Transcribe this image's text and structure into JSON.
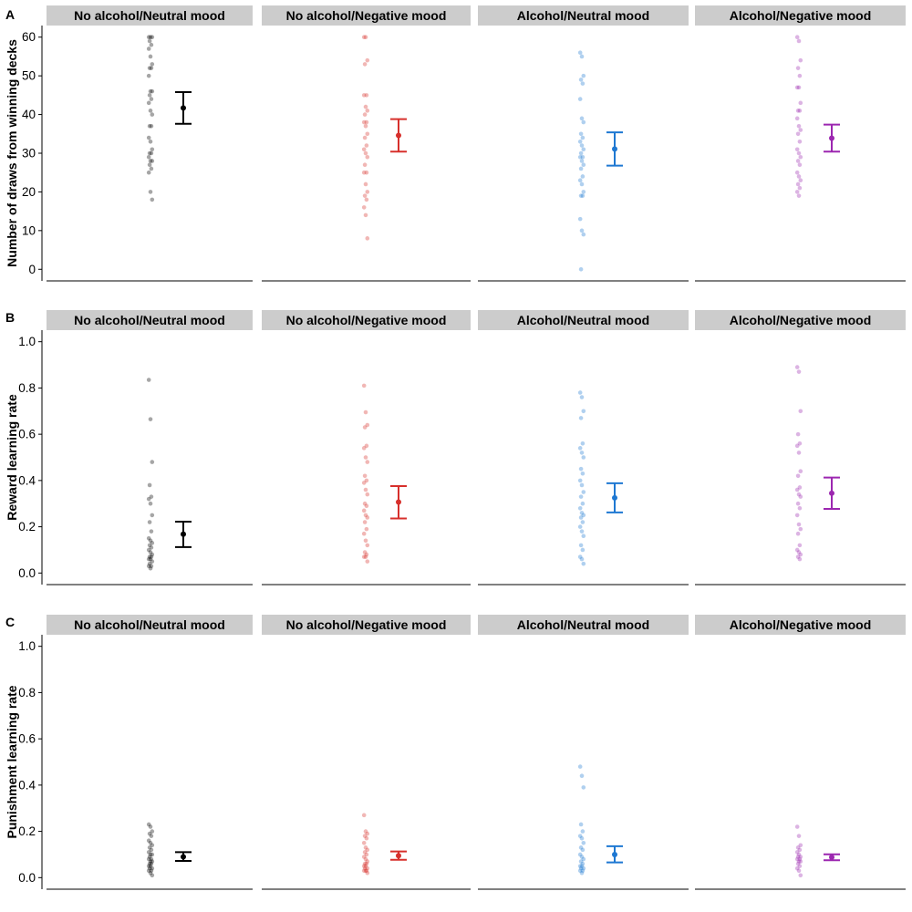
{
  "chart_data": [
    {
      "type": "scatter",
      "panel_label": "A",
      "ylabel": "Number of draws from winning decks",
      "ylim": [
        -3,
        63
      ],
      "yticks": [
        "0",
        "10",
        "20",
        "30",
        "40",
        "50",
        "60"
      ],
      "grid": false,
      "facets": [
        {
          "name": "No alcohol/Neutral mood",
          "color": "#000000",
          "points": [
            60,
            60,
            60,
            59,
            58,
            57,
            55,
            53,
            52,
            52,
            50,
            46,
            46,
            45,
            44,
            43,
            41,
            40,
            37,
            37,
            34,
            33,
            31,
            30,
            30,
            29,
            28,
            28,
            27,
            26,
            25,
            20,
            18
          ],
          "mean": 41.7,
          "ci_low": 37.6,
          "ci_high": 45.8
        },
        {
          "name": "No alcohol/Negative mood",
          "color": "#D7302C",
          "points": [
            60,
            60,
            54,
            53,
            45,
            45,
            42,
            41,
            40,
            38,
            38,
            37,
            35,
            34,
            32,
            31,
            30,
            29,
            27,
            25,
            25,
            22,
            20,
            19,
            18,
            16,
            14,
            8
          ],
          "mean": 34.6,
          "ci_low": 30.4,
          "ci_high": 38.8
        },
        {
          "name": "Alcohol/Neutral mood",
          "color": "#1E78D2",
          "points": [
            56,
            55,
            50,
            49,
            48,
            44,
            39,
            38,
            35,
            34,
            33,
            32,
            31,
            30,
            29,
            29,
            28,
            27,
            26,
            24,
            23,
            22,
            20,
            19,
            19,
            13,
            10,
            9,
            0
          ],
          "mean": 31.1,
          "ci_low": 26.8,
          "ci_high": 35.4
        },
        {
          "name": "Alcohol/Negative mood",
          "color": "#9C27B0",
          "points": [
            60,
            59,
            54,
            52,
            50,
            47,
            47,
            43,
            41,
            41,
            39,
            37,
            36,
            35,
            33,
            31,
            30,
            29,
            28,
            27,
            25,
            24,
            23,
            22,
            21,
            20,
            19
          ],
          "mean": 33.9,
          "ci_low": 30.4,
          "ci_high": 37.4
        }
      ]
    },
    {
      "type": "scatter",
      "panel_label": "B",
      "ylabel": "Reward learning rate",
      "ylim": [
        -0.05,
        1.05
      ],
      "yticks": [
        "0.0",
        "0.2",
        "0.4",
        "0.6",
        "0.8",
        "1.0"
      ],
      "grid": false,
      "facets": [
        {
          "name": "No alcohol/Neutral mood",
          "color": "#000000",
          "points": [
            0.835,
            0.665,
            0.48,
            0.38,
            0.33,
            0.32,
            0.3,
            0.25,
            0.22,
            0.18,
            0.15,
            0.14,
            0.13,
            0.12,
            0.11,
            0.1,
            0.09,
            0.08,
            0.07,
            0.07,
            0.06,
            0.06,
            0.05,
            0.04,
            0.03,
            0.03,
            0.02
          ],
          "mean": 0.168,
          "ci_low": 0.112,
          "ci_high": 0.222
        },
        {
          "name": "No alcohol/Negative mood",
          "color": "#D7302C",
          "points": [
            0.81,
            0.695,
            0.64,
            0.63,
            0.55,
            0.54,
            0.5,
            0.48,
            0.42,
            0.4,
            0.39,
            0.36,
            0.34,
            0.3,
            0.29,
            0.27,
            0.25,
            0.24,
            0.22,
            0.19,
            0.17,
            0.14,
            0.12,
            0.09,
            0.08,
            0.07,
            0.07,
            0.05
          ],
          "mean": 0.307,
          "ci_low": 0.236,
          "ci_high": 0.376
        },
        {
          "name": "Alcohol/Neutral mood",
          "color": "#1E78D2",
          "points": [
            0.78,
            0.76,
            0.7,
            0.67,
            0.56,
            0.54,
            0.52,
            0.5,
            0.45,
            0.43,
            0.4,
            0.38,
            0.35,
            0.33,
            0.3,
            0.28,
            0.26,
            0.25,
            0.24,
            0.22,
            0.2,
            0.18,
            0.16,
            0.12,
            0.1,
            0.07,
            0.06,
            0.04
          ],
          "mean": 0.325,
          "ci_low": 0.262,
          "ci_high": 0.388
        },
        {
          "name": "Alcohol/Negative mood",
          "color": "#9C27B0",
          "points": [
            0.89,
            0.87,
            0.7,
            0.6,
            0.56,
            0.55,
            0.52,
            0.44,
            0.42,
            0.37,
            0.36,
            0.34,
            0.33,
            0.3,
            0.28,
            0.25,
            0.21,
            0.19,
            0.17,
            0.12,
            0.1,
            0.09,
            0.08,
            0.07,
            0.06
          ],
          "mean": 0.345,
          "ci_low": 0.277,
          "ci_high": 0.413
        }
      ]
    },
    {
      "type": "scatter",
      "panel_label": "C",
      "ylabel": "Punishment learning rate",
      "ylim": [
        -0.05,
        1.05
      ],
      "yticks": [
        "0.0",
        "0.2",
        "0.4",
        "0.6",
        "0.8",
        "1.0"
      ],
      "grid": false,
      "facets": [
        {
          "name": "No alcohol/Neutral mood",
          "color": "#000000",
          "points": [
            0.23,
            0.22,
            0.2,
            0.19,
            0.18,
            0.16,
            0.15,
            0.14,
            0.13,
            0.12,
            0.11,
            0.1,
            0.1,
            0.09,
            0.08,
            0.08,
            0.07,
            0.07,
            0.06,
            0.06,
            0.05,
            0.05,
            0.04,
            0.04,
            0.03,
            0.03,
            0.02,
            0.01
          ],
          "mean": 0.09,
          "ci_low": 0.072,
          "ci_high": 0.11
        },
        {
          "name": "No alcohol/Negative mood",
          "color": "#D7302C",
          "points": [
            0.27,
            0.2,
            0.19,
            0.18,
            0.17,
            0.15,
            0.13,
            0.12,
            0.11,
            0.1,
            0.09,
            0.08,
            0.07,
            0.06,
            0.06,
            0.05,
            0.05,
            0.04,
            0.04,
            0.03,
            0.03,
            0.03,
            0.02
          ],
          "mean": 0.095,
          "ci_low": 0.077,
          "ci_high": 0.113
        },
        {
          "name": "Alcohol/Neutral mood",
          "color": "#1E78D2",
          "points": [
            0.48,
            0.44,
            0.39,
            0.23,
            0.2,
            0.18,
            0.17,
            0.15,
            0.13,
            0.12,
            0.1,
            0.09,
            0.08,
            0.07,
            0.06,
            0.05,
            0.05,
            0.04,
            0.04,
            0.03,
            0.03,
            0.02
          ],
          "mean": 0.1,
          "ci_low": 0.066,
          "ci_high": 0.136
        },
        {
          "name": "Alcohol/Negative mood",
          "color": "#9C27B0",
          "points": [
            0.22,
            0.18,
            0.14,
            0.13,
            0.12,
            0.11,
            0.1,
            0.09,
            0.09,
            0.08,
            0.08,
            0.07,
            0.07,
            0.06,
            0.05,
            0.04,
            0.03,
            0.01
          ],
          "mean": 0.088,
          "ci_low": 0.075,
          "ci_high": 0.101
        }
      ]
    }
  ]
}
